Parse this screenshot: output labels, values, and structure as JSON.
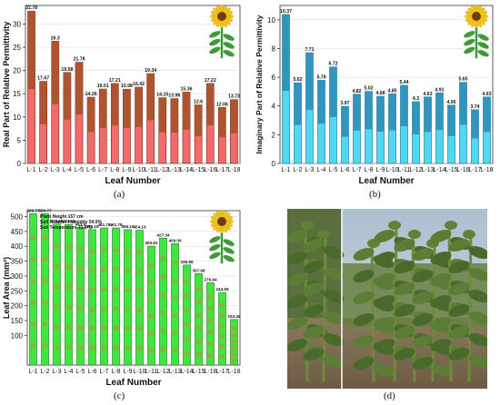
{
  "panels": {
    "a": {
      "caption": "(a)"
    },
    "b": {
      "caption": "(b)"
    },
    "c": {
      "caption": "(c)"
    },
    "d": {
      "caption": "(d)"
    }
  },
  "leaf_labels": [
    "L-1",
    "L-2",
    "L-3",
    "L-4",
    "L-5",
    "L-6",
    "L-7",
    "L-8",
    "L-9",
    "L-10",
    "L-11",
    "L-12",
    "L-13",
    "L-14",
    "L-15",
    "L-16",
    "L-17",
    "L-18"
  ],
  "chart_data": [
    {
      "id": "a",
      "type": "bar",
      "categories": [
        "L-1",
        "L-2",
        "L-3",
        "L-4",
        "L-5",
        "L-6",
        "L-7",
        "L-8",
        "L-9",
        "L-10",
        "L-11",
        "L-12",
        "L-13",
        "L-14",
        "L-15",
        "L-16",
        "L-17",
        "L-18"
      ],
      "values": [
        32.78,
        17.67,
        26.3,
        19.58,
        21.78,
        14.26,
        16.01,
        17.21,
        15.98,
        16.42,
        19.34,
        14.15,
        13.96,
        15.36,
        12.6,
        17.22,
        12.06,
        13.73
      ],
      "value_labels": [
        "32.78",
        "17.67",
        "26.3",
        "19.58",
        "21.78",
        "14.26",
        "16.01",
        "17.21",
        "15.98",
        "16.42",
        "19.34",
        "14.15",
        "13.96",
        "15.36",
        "12.6",
        "17.22",
        "12.06",
        "13.73"
      ],
      "ylabel": "Real Part of Relative Permittivity",
      "xlabel": "Leaf Number",
      "ylim": [
        0,
        34
      ],
      "yticks": [
        0,
        5,
        10,
        15,
        20,
        25,
        30
      ],
      "bar_color": "#f26a6a",
      "bar_edge": "#6e2a16",
      "bar_top": "#a8522d",
      "grid": true
    },
    {
      "id": "b",
      "type": "bar",
      "categories": [
        "L-1",
        "L-2",
        "L-3",
        "L-4",
        "L-5",
        "L-6",
        "L-7",
        "L-8",
        "L-9",
        "L-10",
        "L-11",
        "L-12",
        "L-13",
        "L-14",
        "L-15",
        "L-16",
        "L-17",
        "L-18"
      ],
      "values": [
        10.37,
        5.62,
        7.71,
        5.79,
        6.72,
        3.97,
        4.82,
        5.02,
        4.68,
        4.85,
        5.44,
        4.3,
        4.63,
        4.91,
        4.06,
        5.65,
        3.74,
        4.63
      ],
      "value_labels": [
        "10.37",
        "5.62",
        "7.71",
        "5.79",
        "6.72",
        "3.97",
        "4.82",
        "5.02",
        "4.68",
        "4.85",
        "5.44",
        "4.3",
        "4.63",
        "4.91",
        "4.06",
        "5.65",
        "3.74",
        "4.63"
      ],
      "ylabel": "Imaginary Part of Relative Permittivity",
      "xlabel": "Leaf Number",
      "ylim": [
        0,
        11
      ],
      "yticks": [
        0,
        2,
        4,
        6,
        8,
        10
      ],
      "bar_color": "#4fd8f0",
      "bar_edge": "#1e6f9a",
      "bar_top": "#2f8fb8",
      "grid": true
    },
    {
      "id": "c",
      "type": "bar",
      "categories": [
        "L-1",
        "L-2",
        "L-3",
        "L-4",
        "L-5",
        "L-6",
        "L-7",
        "L-8",
        "L-9",
        "L-10",
        "L-11",
        "L-12",
        "L-13",
        "L-14",
        "L-15",
        "L-16",
        "L-17",
        "L-18"
      ],
      "values": [
        509.77,
        509.77,
        474.69,
        473.68,
        463.6,
        456.16,
        461.78,
        461.78,
        456.19,
        454.19,
        400.62,
        427.34,
        409.09,
        336.86,
        307.98,
        276.94,
        244.59,
        153.45
      ],
      "value_labels": [
        "509.77",
        "509.77",
        "474.69",
        "473.68",
        "463.6",
        "456.16",
        "461.78",
        "461.78",
        "456.19",
        "454.19",
        "400.62",
        "427.34",
        "409.09",
        "336.86",
        "307.98",
        "276.94",
        "244.59",
        "153.45"
      ],
      "ylabel": "Leaf Area (mm²)",
      "xlabel": "Leaf Number",
      "ylim": [
        0,
        520
      ],
      "yticks": [
        100,
        150,
        200,
        250,
        300,
        350,
        400,
        450,
        500
      ],
      "bar_color": "#3ee63e",
      "bar_stripe": "#c88a3a",
      "annotations": [
        "Plant Height 157 cm",
        "Soil Relative Humidity 54.9%",
        "Soil Temperature 31.8°C"
      ],
      "grid": true
    }
  ],
  "photo": {
    "description_colors": {
      "sky": "#b7c7d6",
      "foliage": "#4e6b32",
      "soil": "#9b8468"
    }
  },
  "colors": {
    "sunflower_petal": "#f5c518",
    "sunflower_center": "#6b3e12",
    "leaf_green": "#3f9a38"
  }
}
